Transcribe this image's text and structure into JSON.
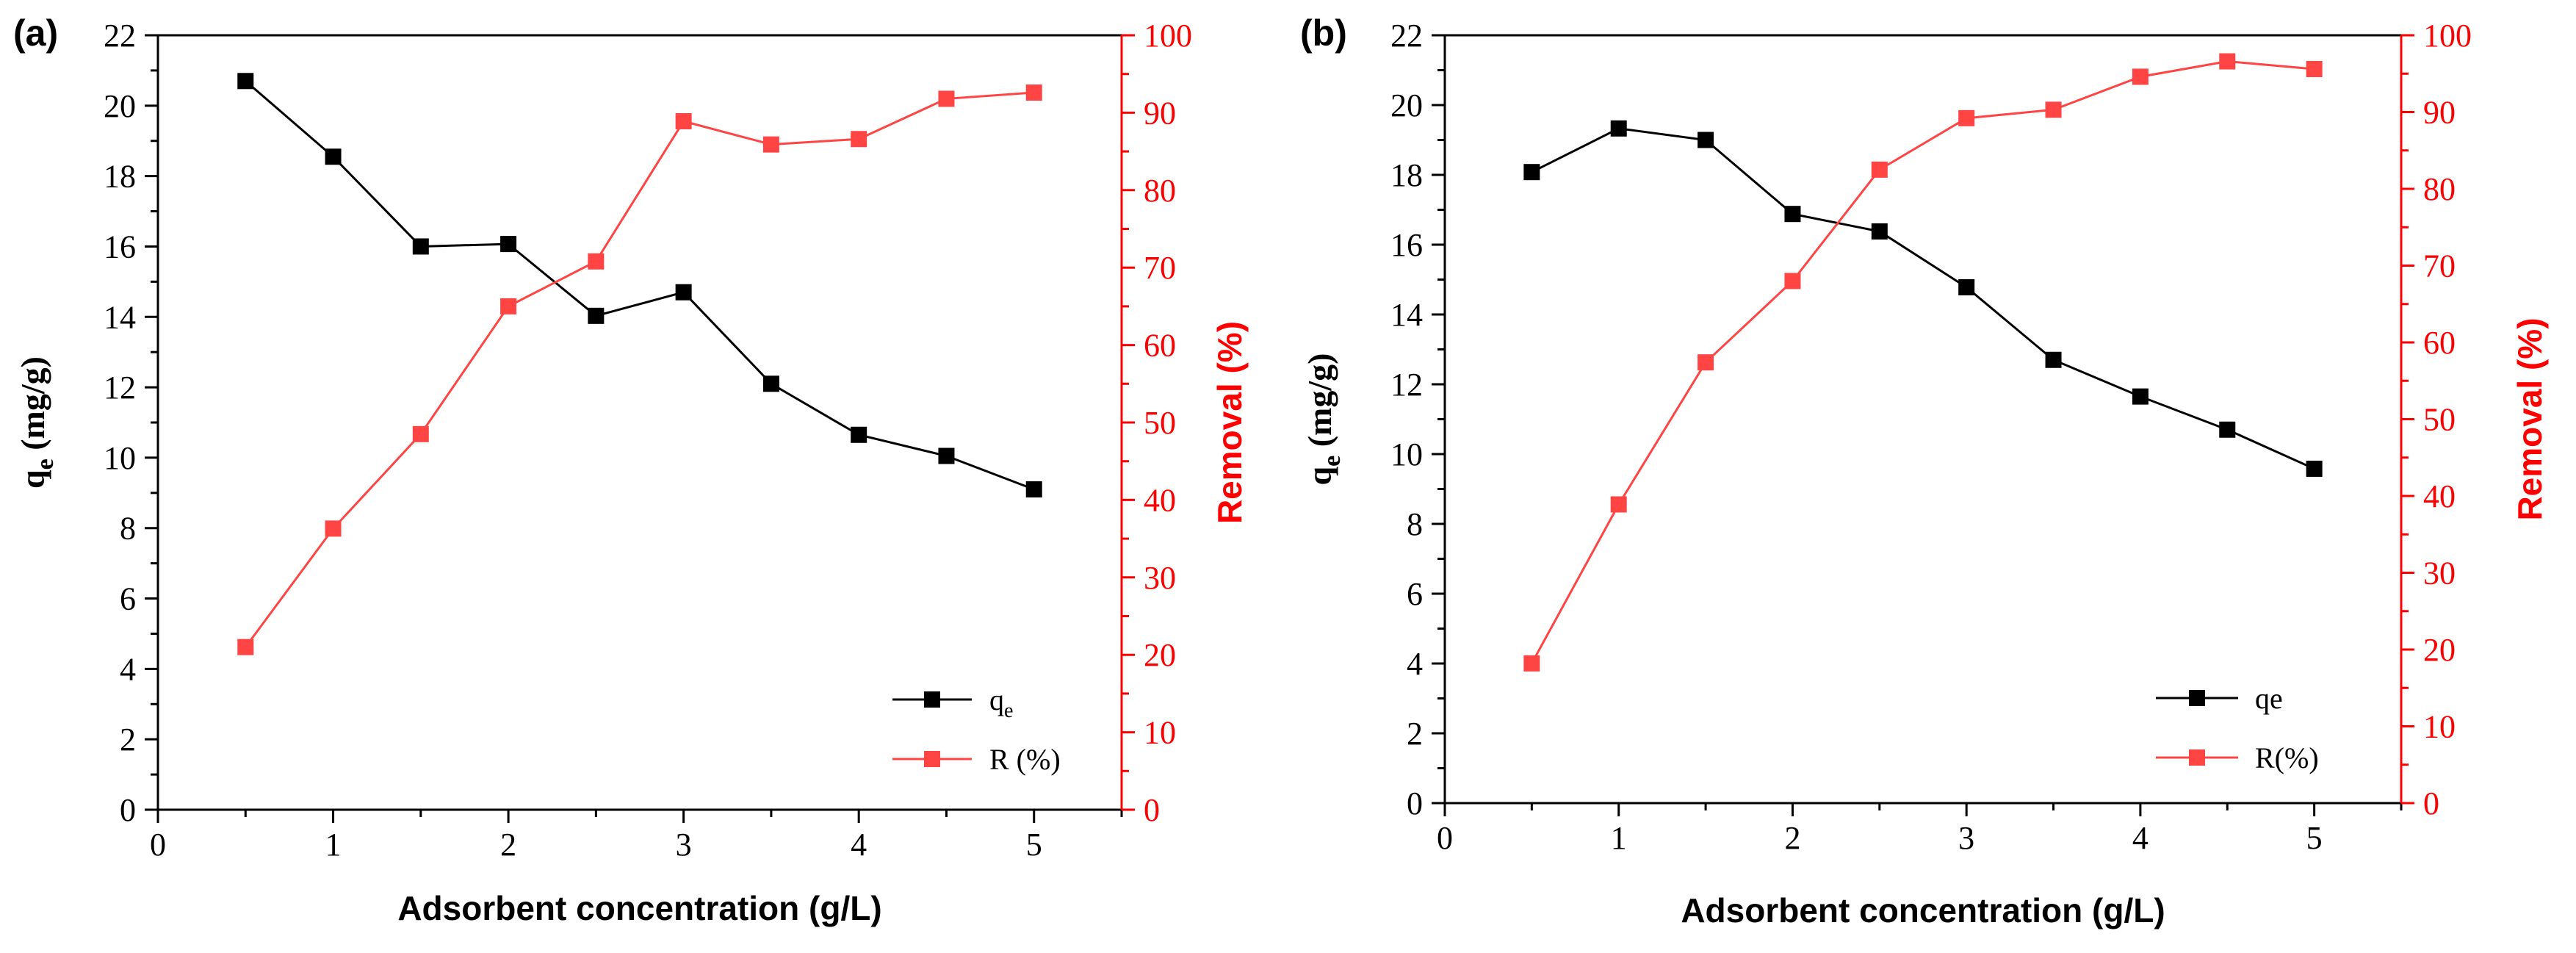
{
  "figure": {
    "background": "#ffffff"
  },
  "colors": {
    "qe": "#000000",
    "removal": "#ff0000",
    "removal_line": "#ff4444"
  },
  "chart_data": [
    {
      "type": "line",
      "panel_label": "(a)",
      "xlabel": "Adsorbent concentration (g/L)",
      "ylabel": "q",
      "ylabel_sub": "e",
      "ylabel_suffix": " (mg/g)",
      "y2label": "Removal (%)",
      "xlim": [
        0,
        5.5
      ],
      "ylim": [
        0,
        22
      ],
      "y2lim": [
        0,
        100
      ],
      "xticks": [
        0,
        1,
        2,
        3,
        4,
        5
      ],
      "yticks": [
        0,
        2,
        4,
        6,
        8,
        10,
        12,
        14,
        16,
        18,
        20,
        22
      ],
      "y2ticks": [
        0,
        10,
        20,
        30,
        40,
        50,
        60,
        70,
        80,
        90,
        100
      ],
      "x": [
        0.5,
        1,
        1.5,
        2,
        2.5,
        3,
        3.5,
        4,
        4.5,
        5
      ],
      "legend_position": "bottom-right",
      "series": [
        {
          "key": "qe",
          "name": "q",
          "name_sub": "e",
          "axis": "left",
          "values": [
            20.7,
            18.55,
            16.0,
            16.07,
            14.03,
            14.7,
            12.1,
            10.65,
            10.05,
            9.1
          ]
        },
        {
          "key": "removal",
          "name": "R (%)",
          "name_sub": "",
          "axis": "right",
          "values": [
            21.0,
            36.3,
            48.5,
            65.0,
            70.8,
            88.9,
            85.9,
            86.6,
            91.8,
            92.6
          ]
        }
      ]
    },
    {
      "type": "line",
      "panel_label": "(b)",
      "xlabel": "Adsorbent concentration (g/L)",
      "ylabel": "q",
      "ylabel_sub": "e",
      "ylabel_suffix": " (mg/g)",
      "y2label": "Removal (%)",
      "xlim": [
        0,
        5.5
      ],
      "ylim": [
        0,
        22
      ],
      "y2lim": [
        0,
        100
      ],
      "xticks": [
        0,
        1,
        2,
        3,
        4,
        5
      ],
      "yticks": [
        0,
        2,
        4,
        6,
        8,
        10,
        12,
        14,
        16,
        18,
        20,
        22
      ],
      "y2ticks": [
        0,
        10,
        20,
        30,
        40,
        50,
        60,
        70,
        80,
        90,
        100
      ],
      "x": [
        0.5,
        1,
        1.5,
        2,
        2.5,
        3,
        3.5,
        4,
        4.5,
        5
      ],
      "legend_position": "bottom-right",
      "series": [
        {
          "key": "qe",
          "name": "qe",
          "name_sub": "",
          "axis": "left",
          "values": [
            18.08,
            19.33,
            19.0,
            16.88,
            16.38,
            14.78,
            12.7,
            11.65,
            10.7,
            9.58
          ]
        },
        {
          "key": "removal",
          "name": "R(%)",
          "name_sub": "",
          "axis": "right",
          "values": [
            18.2,
            38.9,
            57.4,
            68.0,
            82.5,
            89.2,
            90.3,
            94.6,
            96.6,
            95.6
          ]
        }
      ]
    }
  ]
}
